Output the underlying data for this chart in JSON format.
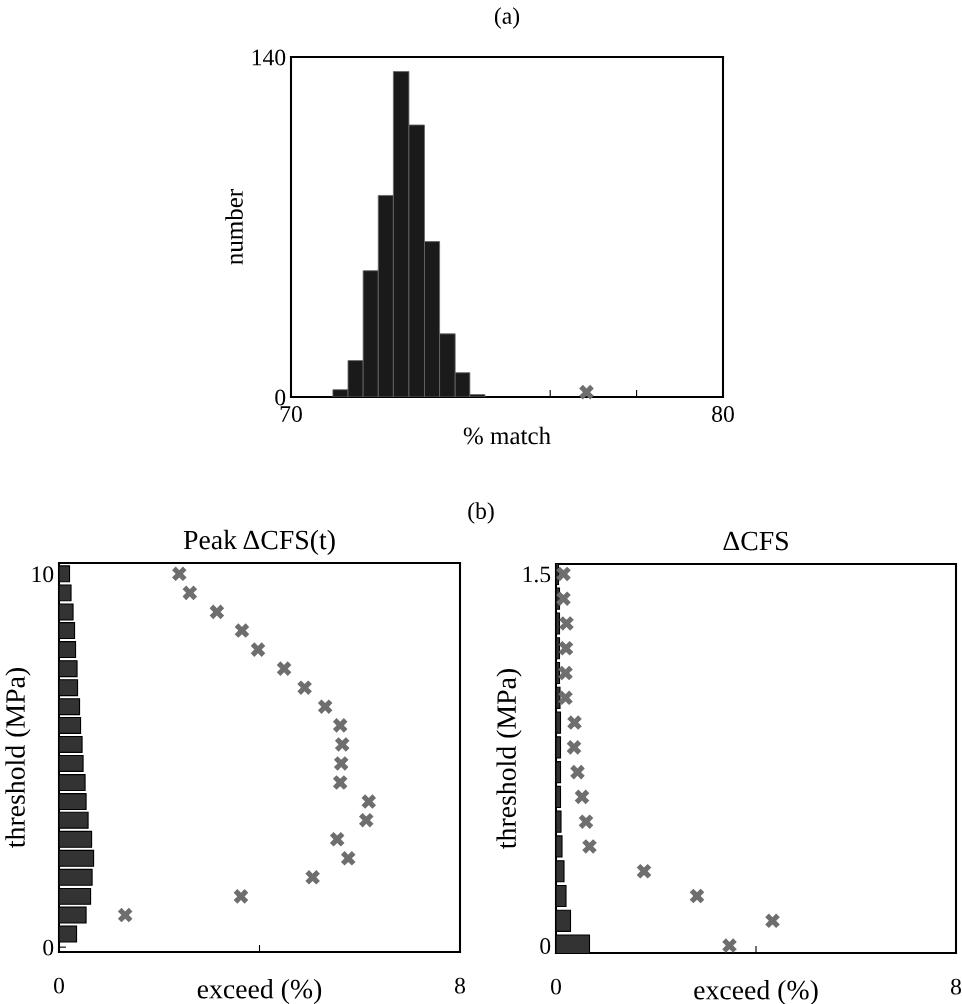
{
  "chart_data": [
    {
      "type": "histogram",
      "title": "(a)",
      "xlabel": "% match",
      "ylabel": "number",
      "bins": [
        70.97,
        71.32,
        71.67,
        72.02,
        72.37,
        72.73,
        73.09,
        73.44,
        73.8,
        74.14,
        74.49
      ],
      "values": [
        3,
        15,
        52,
        83,
        134,
        112,
        64,
        26,
        10,
        1
      ],
      "color": "#1a1a1a",
      "series": [
        {
          "type": "scatter",
          "x": [
            76.84
          ],
          "values": [
            2
          ],
          "color": "#6e6e6e"
        }
      ],
      "xlim": [
        70,
        80
      ],
      "xticks": [
        70,
        {
          "value": 76,
          "label": null
        },
        {
          "value": 78,
          "label": null
        },
        80
      ],
      "ylim": [
        0,
        140
      ],
      "yticks": [
        0,
        140
      ],
      "marker": "cross",
      "grid": false
    },
    {
      "type": "bar",
      "orientation": "horizontal",
      "title": "Peak ΔCFS(t)",
      "annotations": [
        "(b)"
      ],
      "xlabel": "exceed (%)",
      "ylabel": "threshold (MPa)",
      "series": [
        {
          "type": "bar",
          "color": "#333333",
          "x": [
            10.0,
            9.49,
            8.98,
            8.48,
            7.97,
            7.46,
            6.95,
            6.44,
            5.94,
            5.43,
            4.92,
            4.41,
            3.9,
            3.4,
            2.89,
            2.38,
            1.87,
            1.36,
            0.86,
            0.35
          ],
          "values": [
            0.21,
            0.24,
            0.28,
            0.31,
            0.33,
            0.36,
            0.37,
            0.41,
            0.43,
            0.46,
            0.48,
            0.52,
            0.54,
            0.58,
            0.65,
            0.69,
            0.66,
            0.63,
            0.54,
            0.35
          ]
        },
        {
          "type": "scatter",
          "color": "#6e6e6e",
          "x": [
            10.0,
            9.49,
            8.98,
            8.48,
            7.97,
            7.46,
            6.95,
            6.44,
            5.94,
            5.43,
            4.92,
            4.41,
            3.9,
            3.4,
            2.89,
            2.38,
            1.87,
            1.36,
            0.86
          ],
          "values": [
            2.4,
            2.61,
            3.15,
            3.65,
            3.97,
            4.49,
            4.9,
            5.31,
            5.61,
            5.65,
            5.63,
            5.61,
            6.18,
            6.13,
            5.55,
            5.77,
            5.06,
            3.63,
            1.32
          ]
        }
      ],
      "xlim": [
        0,
        8
      ],
      "xticks": [
        0,
        {
          "value": 4,
          "label": null
        },
        8
      ],
      "ylim": [
        -0.13,
        10.29
      ],
      "yticks": [
        0,
        10
      ],
      "marker": "cross",
      "grid": false
    },
    {
      "type": "bar",
      "orientation": "horizontal",
      "title": "ΔCFS",
      "xlabel": "exceed (%)",
      "ylabel": "threshold (MPa)",
      "series": [
        {
          "type": "bar",
          "color": "#333333",
          "x": [
            1.5,
            1.4,
            1.3,
            1.2,
            1.1,
            1.0,
            0.9,
            0.8,
            0.7,
            0.6,
            0.5,
            0.4,
            0.3,
            0.2,
            0.1,
            0.0
          ],
          "values": [
            0.05,
            0.07,
            0.07,
            0.07,
            0.07,
            0.08,
            0.09,
            0.09,
            0.09,
            0.09,
            0.1,
            0.12,
            0.16,
            0.2,
            0.29,
            0.67
          ]
        },
        {
          "type": "scatter",
          "color": "#6e6e6e",
          "x": [
            1.5,
            1.4,
            1.3,
            1.2,
            1.1,
            1.0,
            0.9,
            0.8,
            0.7,
            0.6,
            0.5,
            0.4,
            0.3,
            0.2,
            0.1,
            0.0
          ],
          "values": [
            0.15,
            0.15,
            0.21,
            0.2,
            0.19,
            0.19,
            0.37,
            0.36,
            0.43,
            0.52,
            0.6,
            0.67,
            1.76,
            2.82,
            4.33,
            3.47
          ]
        }
      ],
      "xlim": [
        0,
        8
      ],
      "xticks": [
        0,
        {
          "value": 4,
          "label": null
        },
        8
      ],
      "ylim": [
        -0.03,
        1.54
      ],
      "yticks": [
        0,
        1.5
      ],
      "marker": "cross",
      "grid": false
    }
  ]
}
